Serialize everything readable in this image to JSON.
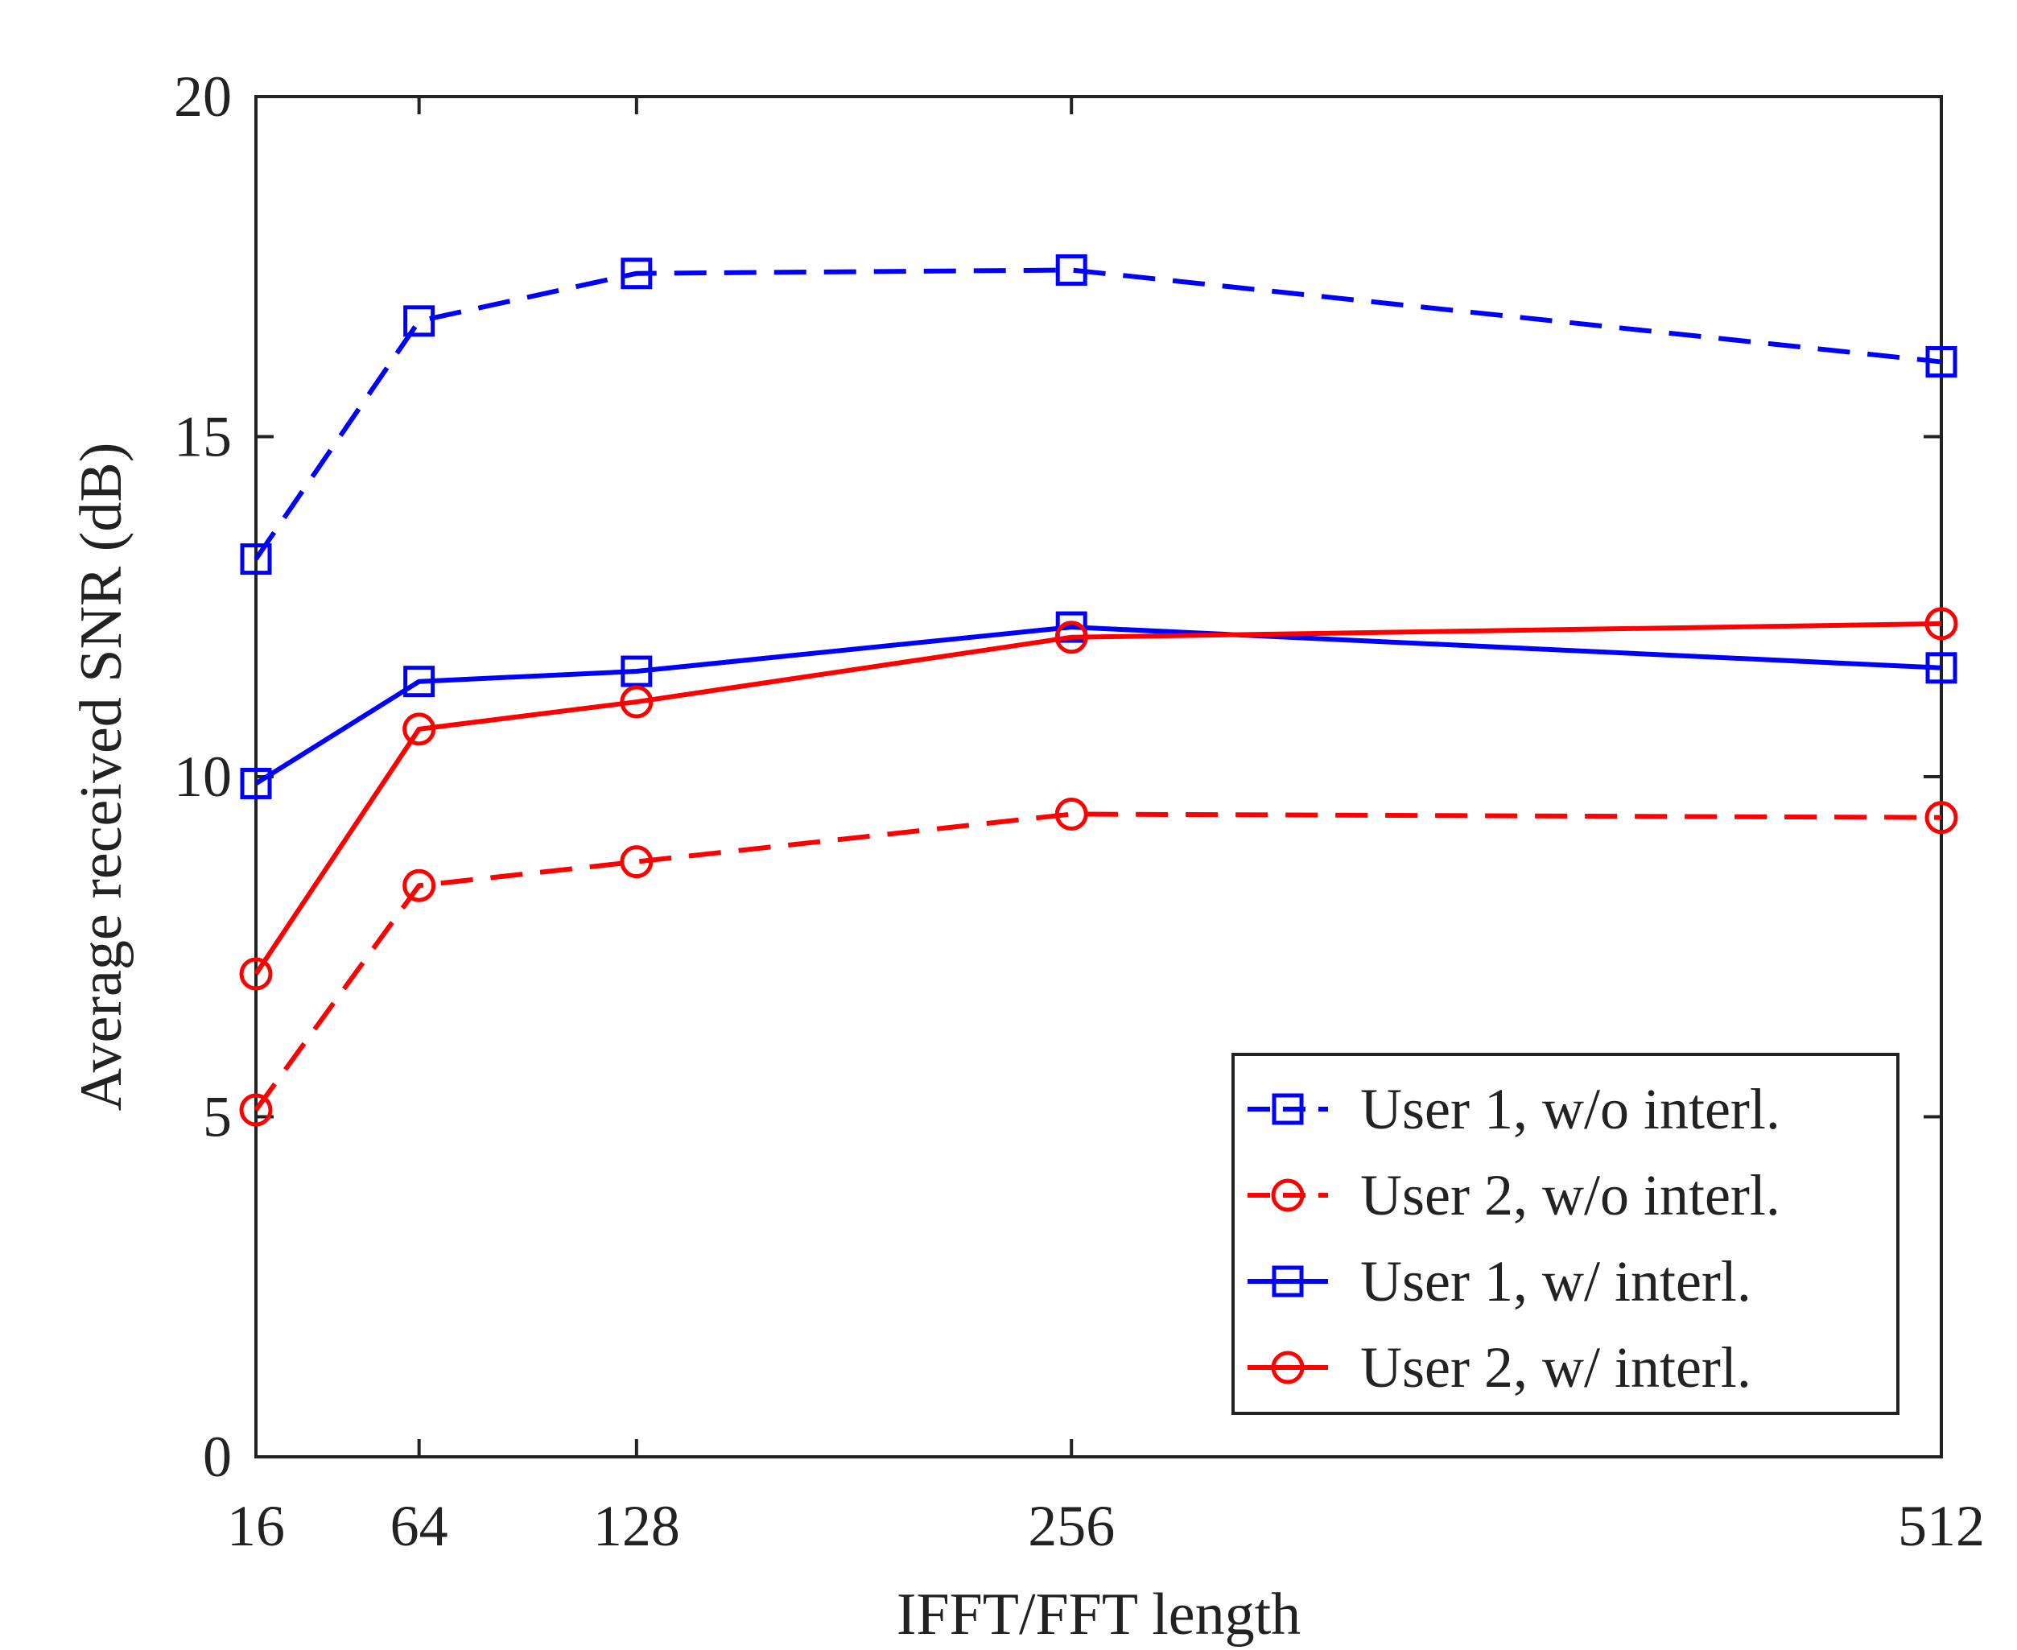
{
  "chart_data": {
    "type": "line",
    "title": "",
    "xlabel": "IFFT/FFT length",
    "ylabel": "Average received SNR (dB)",
    "x": [
      16,
      64,
      128,
      256,
      512
    ],
    "xticks": [
      "16",
      "64",
      "128",
      "256",
      "512"
    ],
    "yticks": [
      "0",
      "5",
      "10",
      "15",
      "20"
    ],
    "xlim": [
      16,
      512
    ],
    "ylim": [
      0,
      20
    ],
    "grid": false,
    "legend_position": "bottom-right",
    "series": [
      {
        "name": "User 1, w/o interl.",
        "color": "#0000ff",
        "dash": "dashed",
        "marker": "square",
        "values": [
          13.2,
          16.7,
          17.4,
          17.45,
          16.1
        ]
      },
      {
        "name": "User 2, w/o interl.",
        "color": "#ff0000",
        "dash": "dashed",
        "marker": "circle",
        "values": [
          5.1,
          8.4,
          8.75,
          9.45,
          9.4
        ]
      },
      {
        "name": "User 1, w/ interl.",
        "color": "#0000ff",
        "dash": "solid",
        "marker": "square",
        "values": [
          9.9,
          11.4,
          11.55,
          12.2,
          11.6
        ]
      },
      {
        "name": "User 2, w/ interl.",
        "color": "#ff0000",
        "dash": "solid",
        "marker": "circle",
        "values": [
          7.1,
          10.7,
          11.1,
          12.05,
          12.25
        ]
      }
    ]
  }
}
